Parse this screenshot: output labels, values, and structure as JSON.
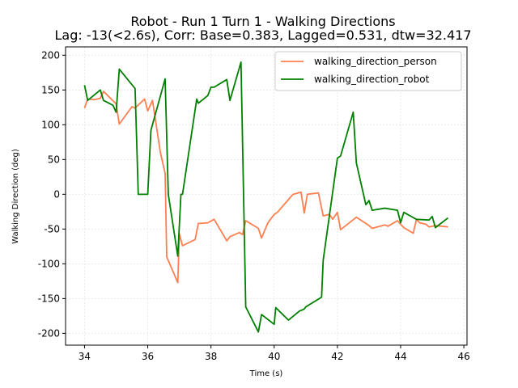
{
  "chart_data": {
    "type": "line",
    "title": "Robot - Run 1 Turn 1 - Walking Directions",
    "subtitle": "Lag: -13(<2.6s), Corr: Base=0.383, Lagged=0.531, dtw=32.417",
    "xlabel": "Time (s)",
    "ylabel": "Walking Direction (deg)",
    "xlim": [
      33.4,
      46.1
    ],
    "ylim": [
      -217,
      212
    ],
    "xticks": [
      34,
      36,
      38,
      40,
      42,
      44,
      46
    ],
    "yticks": [
      -200,
      -150,
      -100,
      -50,
      0,
      50,
      100,
      150,
      200
    ],
    "grid": true,
    "legend_position": "upper right",
    "series": [
      {
        "name": "walking_direction_person",
        "color": "#ff7f50",
        "points": [
          [
            34.0,
            124
          ],
          [
            34.1,
            137
          ],
          [
            34.3,
            136
          ],
          [
            34.5,
            138
          ],
          [
            34.6,
            148
          ],
          [
            35.0,
            130
          ],
          [
            35.1,
            101
          ],
          [
            35.5,
            126
          ],
          [
            35.6,
            124
          ],
          [
            35.9,
            137
          ],
          [
            36.0,
            120
          ],
          [
            36.15,
            135
          ],
          [
            36.4,
            60
          ],
          [
            36.55,
            30
          ],
          [
            36.6,
            -90
          ],
          [
            36.95,
            -127
          ],
          [
            37.0,
            -57
          ],
          [
            37.1,
            -74
          ],
          [
            37.5,
            -65
          ],
          [
            37.6,
            -42
          ],
          [
            37.9,
            -41
          ],
          [
            38.1,
            -36
          ],
          [
            38.5,
            -67
          ],
          [
            38.6,
            -61
          ],
          [
            38.9,
            -55
          ],
          [
            39.0,
            -58
          ],
          [
            39.1,
            -38
          ],
          [
            39.5,
            -49
          ],
          [
            39.6,
            -63
          ],
          [
            39.8,
            -41
          ],
          [
            40.0,
            -29
          ],
          [
            40.1,
            -26
          ],
          [
            40.5,
            -5
          ],
          [
            40.6,
            0
          ],
          [
            40.85,
            3
          ],
          [
            40.95,
            -27
          ],
          [
            41.05,
            0
          ],
          [
            41.4,
            2
          ],
          [
            41.55,
            -31
          ],
          [
            41.75,
            -29
          ],
          [
            41.85,
            -36
          ],
          [
            42.0,
            -26
          ],
          [
            42.1,
            -51
          ],
          [
            42.6,
            -33
          ],
          [
            43.0,
            -45
          ],
          [
            43.1,
            -49
          ],
          [
            43.5,
            -44
          ],
          [
            43.6,
            -46
          ],
          [
            43.9,
            -38
          ],
          [
            44.1,
            -48
          ],
          [
            44.4,
            -56
          ],
          [
            44.5,
            -36
          ],
          [
            44.6,
            -41
          ],
          [
            44.8,
            -43
          ],
          [
            44.9,
            -47
          ],
          [
            45.1,
            -45
          ],
          [
            45.5,
            -47
          ]
        ]
      },
      {
        "name": "walking_direction_robot",
        "color": "#008000",
        "points": [
          [
            34.0,
            157
          ],
          [
            34.1,
            135
          ],
          [
            34.5,
            150
          ],
          [
            34.6,
            135
          ],
          [
            34.9,
            128
          ],
          [
            35.0,
            118
          ],
          [
            35.1,
            180
          ],
          [
            35.6,
            152
          ],
          [
            35.7,
            0
          ],
          [
            36.0,
            0
          ],
          [
            36.1,
            92
          ],
          [
            36.55,
            166
          ],
          [
            36.65,
            0
          ],
          [
            36.95,
            -89
          ],
          [
            37.05,
            0
          ],
          [
            37.1,
            0
          ],
          [
            37.55,
            137
          ],
          [
            37.6,
            131
          ],
          [
            37.9,
            142
          ],
          [
            38.0,
            154
          ],
          [
            38.1,
            154
          ],
          [
            38.5,
            165
          ],
          [
            38.6,
            135
          ],
          [
            38.95,
            190
          ],
          [
            39.1,
            -162
          ],
          [
            39.5,
            -198
          ],
          [
            39.6,
            -173
          ],
          [
            40.0,
            -187
          ],
          [
            40.05,
            -163
          ],
          [
            40.45,
            -181
          ],
          [
            40.8,
            -168
          ],
          [
            40.95,
            -165
          ],
          [
            41.0,
            -162
          ],
          [
            41.5,
            -148
          ],
          [
            41.55,
            -95
          ],
          [
            42.0,
            52
          ],
          [
            42.1,
            55
          ],
          [
            42.5,
            118
          ],
          [
            42.6,
            45
          ],
          [
            42.9,
            -15
          ],
          [
            43.0,
            -9
          ],
          [
            43.1,
            -23
          ],
          [
            43.5,
            -20
          ],
          [
            43.9,
            -23
          ],
          [
            44.0,
            -41
          ],
          [
            44.1,
            -26
          ],
          [
            44.5,
            -36
          ],
          [
            44.9,
            -37
          ],
          [
            45.0,
            -32
          ],
          [
            45.1,
            -48
          ],
          [
            45.5,
            -34
          ]
        ]
      }
    ]
  }
}
